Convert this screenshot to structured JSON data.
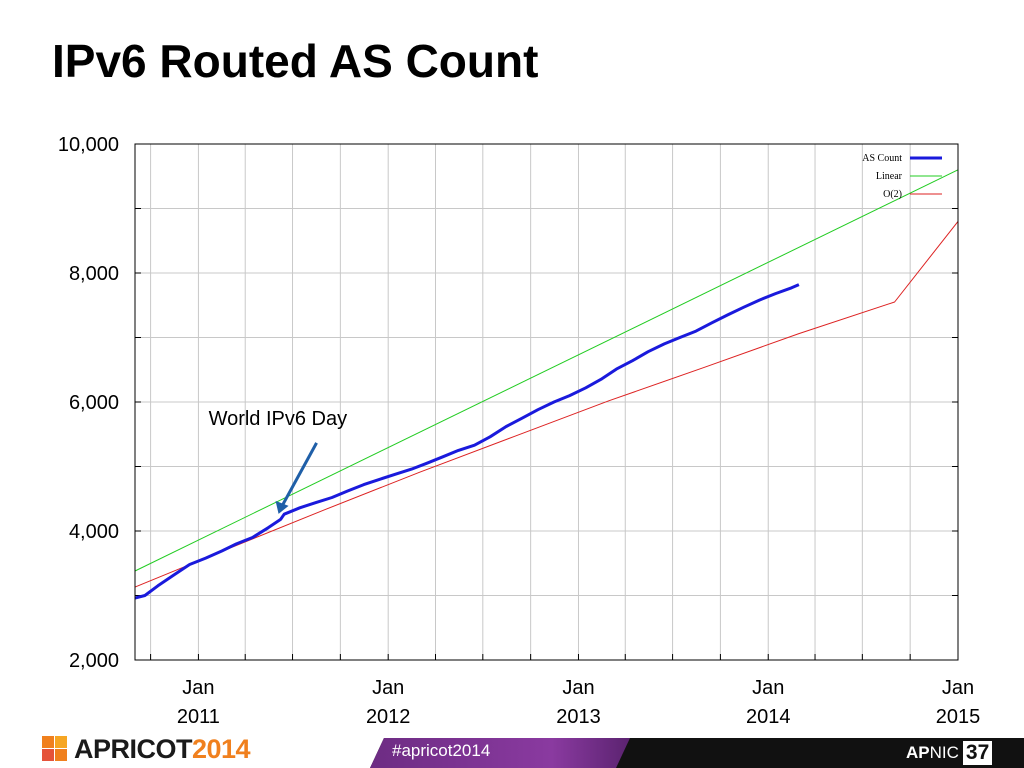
{
  "slide": {
    "title": "IPv6 Routed AS Count"
  },
  "chart_data": {
    "type": "line",
    "title": "",
    "xlabel": "",
    "ylabel": "",
    "x_range": [
      "2010-09-01",
      "2015-01-01"
    ],
    "ylim": [
      2000,
      10000
    ],
    "grid": true,
    "legend_position": "top-right",
    "y_ticks": [
      "2,000",
      "4,000",
      "6,000",
      "8,000",
      "10,000"
    ],
    "y_tick_values": [
      2000,
      4000,
      6000,
      8000,
      10000
    ],
    "x_ticks": [
      {
        "month": "Jan",
        "year": "2011",
        "date": "2011-01-01"
      },
      {
        "month": "Jan",
        "year": "2012",
        "date": "2012-01-01"
      },
      {
        "month": "Jan",
        "year": "2013",
        "date": "2013-01-01"
      },
      {
        "month": "Jan",
        "year": "2014",
        "date": "2014-01-01"
      },
      {
        "month": "Jan",
        "year": "2015",
        "date": "2015-01-01"
      }
    ],
    "series": [
      {
        "name": "AS Count",
        "color": "#1a1adc",
        "style": "thick",
        "points": [
          [
            "2010-09-01",
            2960
          ],
          [
            "2010-09-20",
            3000
          ],
          [
            "2010-10-15",
            3150
          ],
          [
            "2010-11-15",
            3320
          ],
          [
            "2010-12-15",
            3480
          ],
          [
            "2011-01-15",
            3580
          ],
          [
            "2011-02-15",
            3690
          ],
          [
            "2011-03-15",
            3800
          ],
          [
            "2011-04-15",
            3900
          ],
          [
            "2011-05-15",
            4050
          ],
          [
            "2011-06-08",
            4180
          ],
          [
            "2011-06-15",
            4260
          ],
          [
            "2011-07-15",
            4360
          ],
          [
            "2011-08-15",
            4440
          ],
          [
            "2011-09-15",
            4520
          ],
          [
            "2011-10-15",
            4620
          ],
          [
            "2011-11-15",
            4720
          ],
          [
            "2011-12-15",
            4800
          ],
          [
            "2012-01-15",
            4880
          ],
          [
            "2012-02-15",
            4960
          ],
          [
            "2012-03-15",
            5050
          ],
          [
            "2012-04-15",
            5150
          ],
          [
            "2012-05-15",
            5250
          ],
          [
            "2012-06-15",
            5330
          ],
          [
            "2012-07-15",
            5460
          ],
          [
            "2012-08-15",
            5620
          ],
          [
            "2012-09-15",
            5750
          ],
          [
            "2012-10-15",
            5880
          ],
          [
            "2012-11-15",
            6000
          ],
          [
            "2012-12-15",
            6100
          ],
          [
            "2013-01-15",
            6220
          ],
          [
            "2013-02-15",
            6360
          ],
          [
            "2013-03-15",
            6510
          ],
          [
            "2013-04-15",
            6640
          ],
          [
            "2013-05-15",
            6780
          ],
          [
            "2013-06-15",
            6900
          ],
          [
            "2013-07-15",
            7000
          ],
          [
            "2013-08-15",
            7100
          ],
          [
            "2013-09-15",
            7230
          ],
          [
            "2013-10-15",
            7350
          ],
          [
            "2013-11-15",
            7470
          ],
          [
            "2013-12-15",
            7580
          ],
          [
            "2014-01-15",
            7680
          ],
          [
            "2014-02-15",
            7770
          ],
          [
            "2014-03-01",
            7820
          ]
        ]
      },
      {
        "name": "Linear",
        "color": "#22cc22",
        "style": "thin",
        "points": [
          [
            "2010-09-01",
            3380
          ],
          [
            "2015-01-01",
            9600
          ]
        ]
      },
      {
        "name": "O(2)",
        "color": "#dd2222",
        "style": "thin",
        "points": [
          [
            "2010-09-01",
            3130
          ],
          [
            "2011-03-01",
            3730
          ],
          [
            "2011-09-01",
            4330
          ],
          [
            "2012-03-01",
            4910
          ],
          [
            "2012-09-01",
            5470
          ],
          [
            "2013-03-01",
            6020
          ],
          [
            "2013-09-01",
            6540
          ],
          [
            "2014-03-01",
            7060
          ],
          [
            "2014-09-01",
            7550
          ],
          [
            "2015-01-01",
            8800
          ]
        ]
      }
    ],
    "annotations": [
      {
        "text": "World IPv6 Day",
        "target_date": "2011-06-08",
        "target_value": 4250
      }
    ]
  },
  "footer": {
    "conference_name": "APRICOT",
    "conference_year": "2014",
    "hashtag": "#apricot2014",
    "org_ap": "AP",
    "org_nic": "NIC",
    "org_number": "37"
  }
}
